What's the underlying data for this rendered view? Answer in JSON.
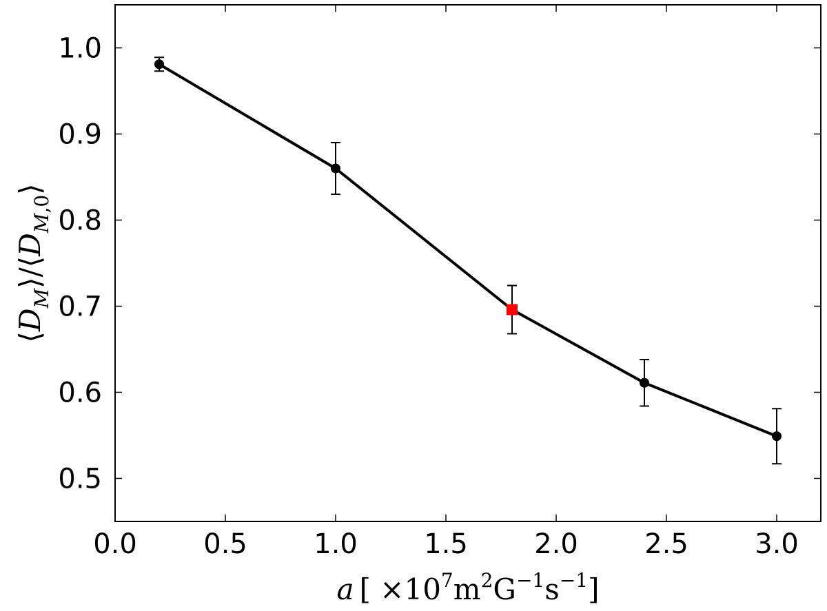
{
  "chart_data": {
    "type": "line",
    "title": "",
    "xlabel": "a [×10⁷m²G⁻¹s⁻¹]",
    "ylabel": "⟨D_M⟩/⟨D_M,0⟩",
    "xlim": [
      0.0,
      3.2
    ],
    "ylim": [
      0.45,
      1.05
    ],
    "x_ticks": [
      "0.0",
      "0.5",
      "1.0",
      "1.5",
      "2.0",
      "2.5",
      "3.0"
    ],
    "y_ticks": [
      "0.5",
      "0.6",
      "0.7",
      "0.8",
      "0.9",
      "1.0"
    ],
    "grid": false,
    "series": [
      {
        "x": [
          0.2,
          1.0,
          1.8,
          2.4,
          3.0
        ],
        "y": [
          0.981,
          0.86,
          0.696,
          0.611,
          0.549
        ],
        "yerr": [
          0.008,
          0.03,
          0.028,
          0.027,
          0.032
        ],
        "color": "#000000",
        "marker": "circle"
      }
    ],
    "highlight": {
      "x": 1.8,
      "y": 0.696,
      "color": "#ff0000",
      "marker": "square"
    }
  }
}
